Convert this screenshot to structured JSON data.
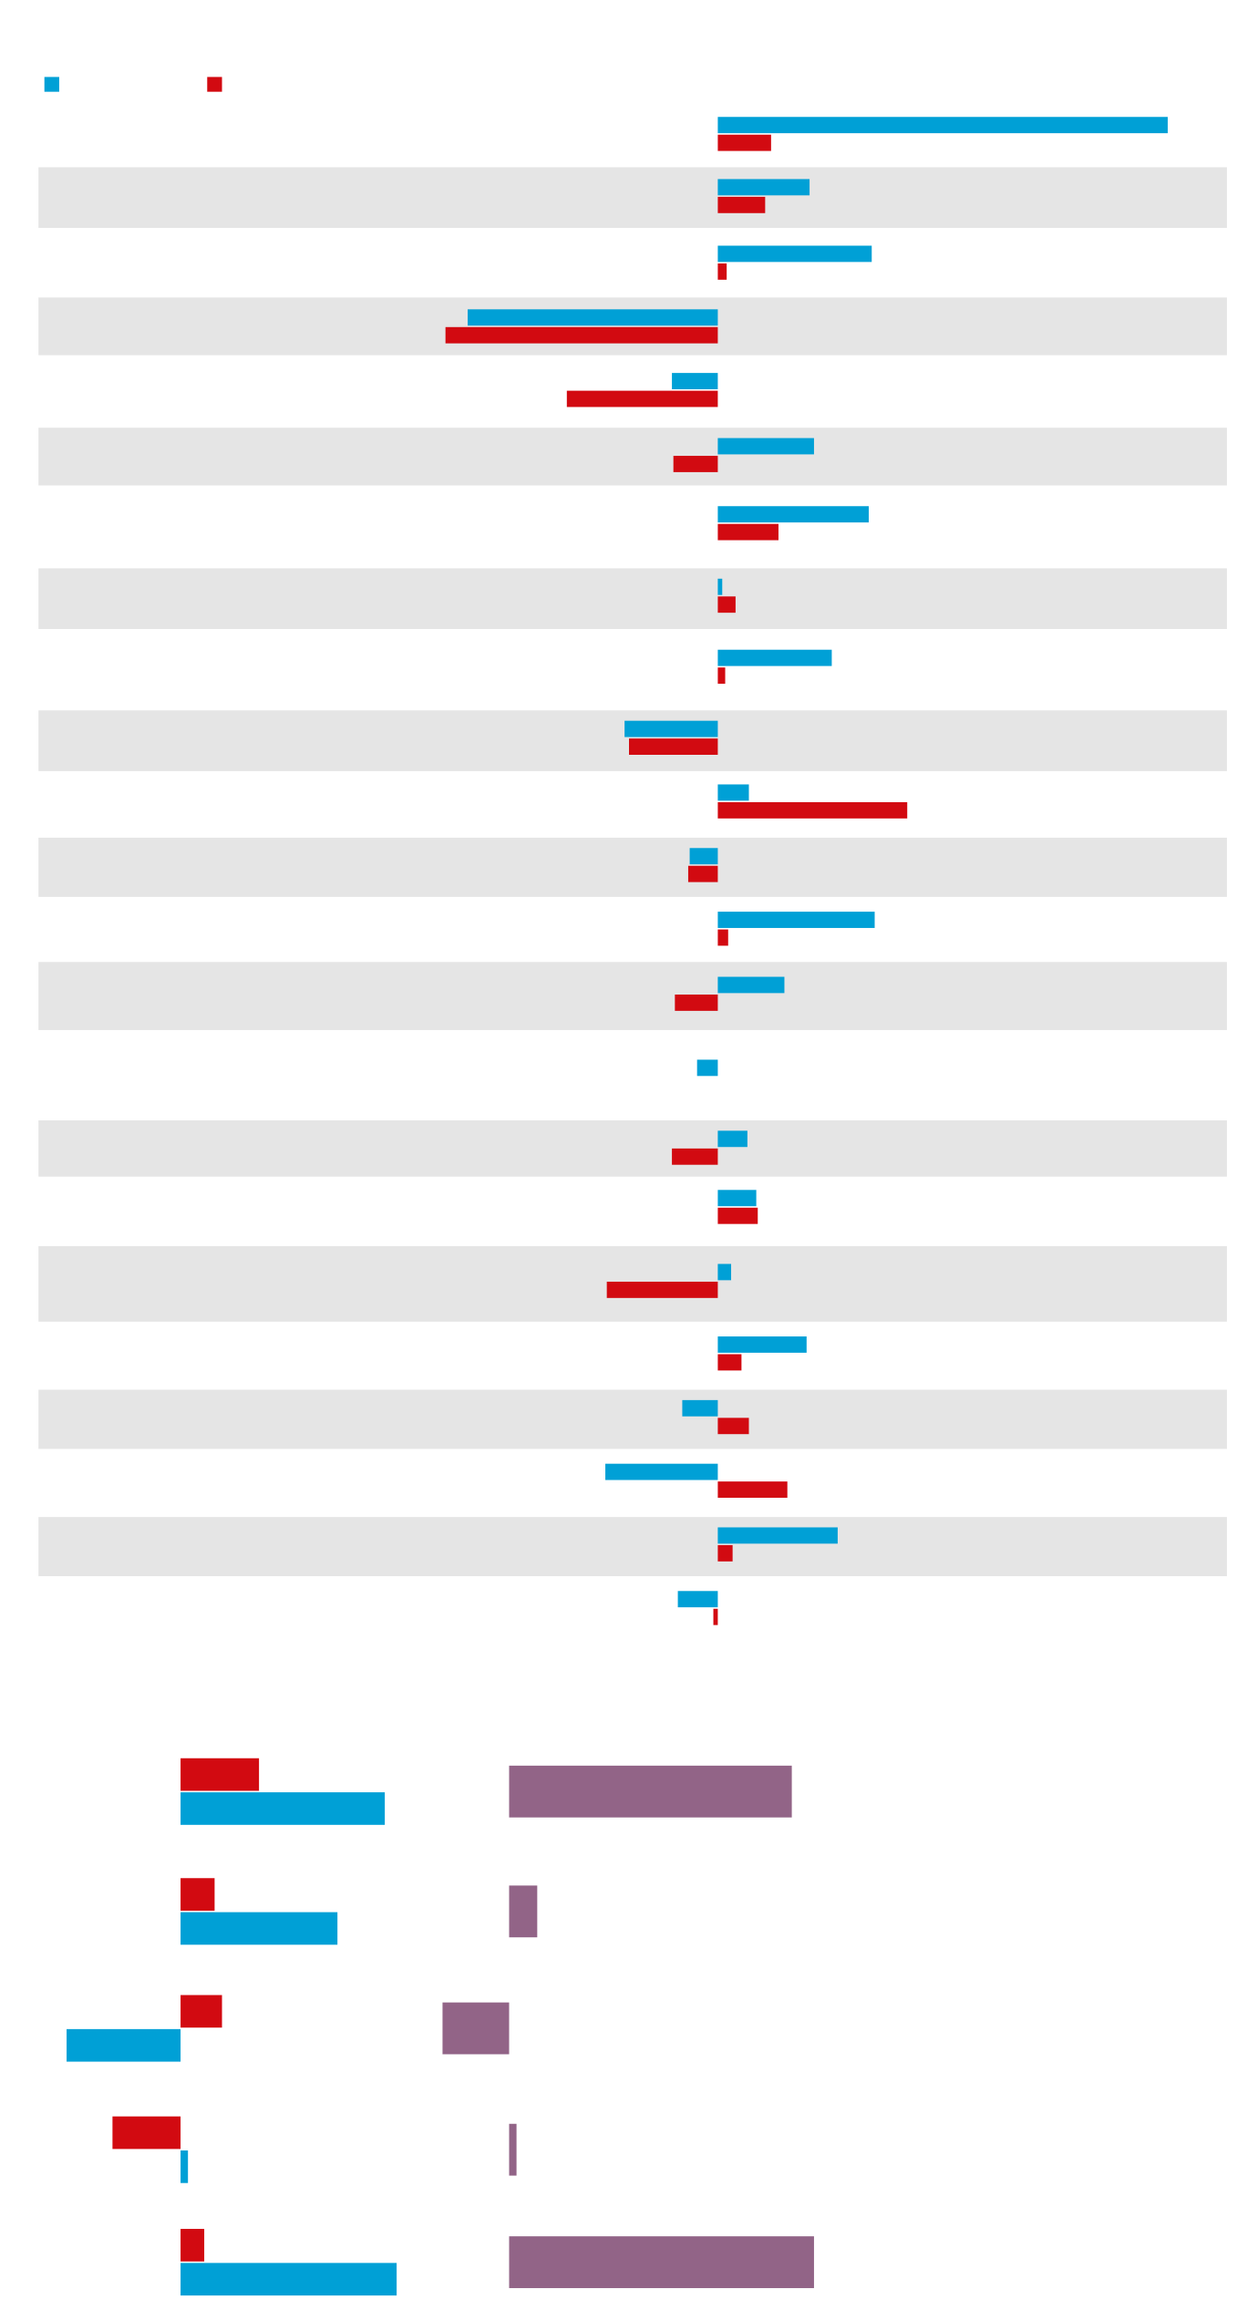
{
  "chart_data": [
    {
      "type": "hbar",
      "xlim": [
        -459,
        344
      ],
      "band_color": "#e5e5e5",
      "series": [
        {
          "color": "#00a0d6",
          "values": [
            304,
            62,
            104,
            -169,
            -31,
            65,
            102,
            3,
            77,
            -63,
            21,
            -19,
            106,
            45,
            -14,
            20,
            26,
            9,
            60,
            -24,
            -76,
            81,
            -27
          ]
        },
        {
          "color": "#d20a11",
          "values": [
            36,
            32,
            6,
            -184,
            -102,
            -30,
            41,
            12,
            5,
            -60,
            128,
            -20,
            7,
            -29,
            null,
            -31,
            27,
            -75,
            16,
            21,
            47,
            10,
            -3
          ]
        }
      ]
    },
    {
      "type": "hbar-pair",
      "xlim": [
        -96,
        164
      ],
      "series": [
        {
          "color": "#d20a11",
          "values": [
            53,
            23,
            28,
            -46,
            16
          ]
        },
        {
          "color": "#00a0d6",
          "values": [
            138,
            106,
            -77,
            5,
            146
          ]
        }
      ]
    },
    {
      "type": "hbar-single",
      "xlim": [
        -45,
        485
      ],
      "color": "#926487",
      "values": [
        191,
        19,
        -45,
        5,
        206
      ]
    }
  ]
}
